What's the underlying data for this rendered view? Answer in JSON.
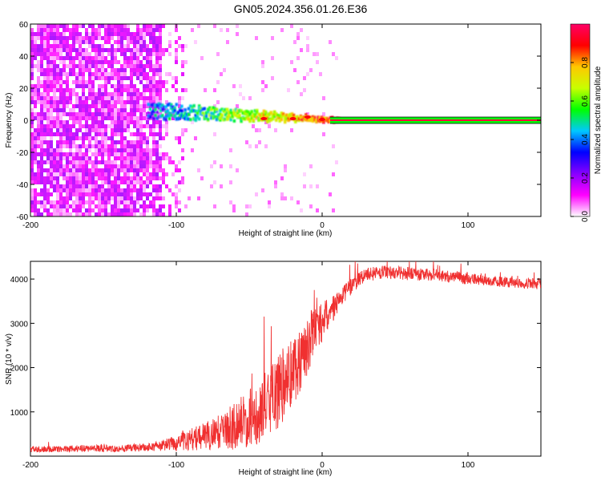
{
  "title": "GN05.2024.356.01.26.E36",
  "chart_data": [
    {
      "type": "heatmap",
      "xlabel": "Height of straight line (km)",
      "ylabel": "Frequency (Hz)",
      "xlim": [
        -200,
        150
      ],
      "ylim": [
        -60,
        60
      ],
      "xticks": [
        -200,
        -100,
        0,
        100
      ],
      "yticks": [
        -60,
        -40,
        -20,
        0,
        20,
        40,
        60
      ],
      "colorbar": {
        "label": "Normalized spectral amplitude",
        "range": [
          0.0,
          1.0
        ],
        "ticks": [
          0.0,
          0.2,
          0.4,
          0.6,
          0.8
        ],
        "colors": [
          "#ffffff",
          "#ff00ff",
          "#8800ff",
          "#0000ff",
          "#00c8ff",
          "#00ff00",
          "#c8ff00",
          "#ffc800",
          "#ff0000",
          "#ff0066"
        ]
      },
      "features": {
        "carrier_frequency_hz": 0,
        "carrier_band_hz": [
          -2,
          2
        ],
        "noise_region_x_km": [
          -200,
          -110
        ],
        "strong_signal_x_km": [
          -120,
          150
        ],
        "tone_sample_x_km": [
          -40,
          -20,
          -10,
          0
        ],
        "tone_sample_freq_hz": [
          1,
          1,
          2,
          0.5
        ]
      }
    },
    {
      "type": "line",
      "xlabel": "Height of straight line (km)",
      "ylabel": "SNR (10 * v/v)",
      "xlim": [
        -200,
        150
      ],
      "ylim": [
        0,
        4400
      ],
      "xticks": [
        -200,
        -100,
        0,
        100
      ],
      "yticks": [
        1000,
        2000,
        3000,
        4000
      ],
      "series": [
        {
          "name": "SNR",
          "color": "#f03030",
          "x": [
            -200,
            -180,
            -160,
            -140,
            -120,
            -110,
            -100,
            -90,
            -80,
            -70,
            -60,
            -50,
            -45,
            -40,
            -35,
            -30,
            -25,
            -20,
            -15,
            -10,
            -5,
            0,
            5,
            10,
            15,
            20,
            25,
            30,
            40,
            50,
            60,
            70,
            80,
            90,
            100,
            110,
            120,
            130,
            140,
            150
          ],
          "values": [
            150,
            160,
            180,
            170,
            200,
            240,
            300,
            380,
            450,
            550,
            700,
            850,
            950,
            1100,
            1250,
            1450,
            1700,
            1950,
            2200,
            2500,
            2900,
            3000,
            3250,
            3450,
            3650,
            3850,
            4000,
            4100,
            4150,
            4150,
            4120,
            4100,
            4080,
            4050,
            4000,
            3980,
            3950,
            3920,
            3900,
            3880
          ],
          "noise_amplitude": [
            70,
            70,
            80,
            80,
            90,
            120,
            180,
            250,
            320,
            400,
            550,
            650,
            700,
            750,
            800,
            850,
            850,
            800,
            750,
            700,
            500,
            450,
            350,
            250,
            200,
            200,
            180,
            160,
            160,
            150,
            150,
            140,
            140,
            130,
            130,
            120,
            120,
            120,
            120,
            120
          ]
        }
      ]
    }
  ]
}
